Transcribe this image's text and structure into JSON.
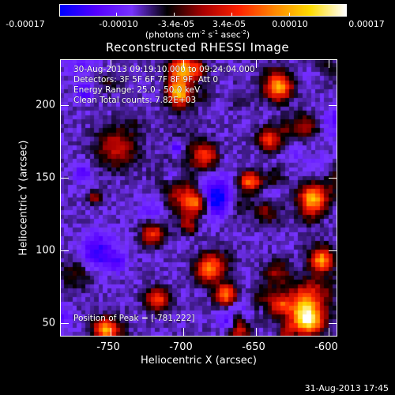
{
  "colorbar": {
    "tick_labels": [
      "-0.00017",
      "-0.00010",
      "-3.4e-05",
      "3.4e-05",
      "0.00010",
      "0.00017"
    ],
    "units_text": "(photons cm",
    "units_sup1": "-2",
    "units_mid": " s",
    "units_sup2": "-1",
    "units_end": " asec",
    "units_sup3": "-2",
    "units_close": ")",
    "colors": [
      "#0000ff",
      "#5500ff",
      "#7733ff",
      "#000000",
      "#aa0000",
      "#ff2200",
      "#ff8800",
      "#ffdd00",
      "#ffffff"
    ]
  },
  "plot": {
    "title": "Reconstructed RHESSI Image",
    "info_lines": [
      "30-Aug-2013 09:19:10.000 to 09:24:04.000",
      "Detectors: 3F 5F 6F 7F 8F 9F, Att 0",
      "Energy Range: 25.0 - 50.0 keV",
      "Clean     Total counts: 7.82E+03"
    ],
    "peak_text": "Position of Peak = [-781,222]",
    "xlabel": "Heliocentric X (arcsec)",
    "ylabel": "Heliocentric Y (arcsec)",
    "xticks": [
      "-750",
      "-700",
      "-650",
      "-600"
    ],
    "yticks": [
      "200",
      "150",
      "100",
      "50"
    ]
  },
  "chart_data": {
    "type": "heatmap",
    "title": "Reconstructed RHESSI Image",
    "xlabel": "Heliocentric X (arcsec)",
    "ylabel": "Heliocentric Y (arcsec)",
    "xlim": [
      -780,
      -590
    ],
    "ylim": [
      40,
      230
    ],
    "x_ticks": [
      -750,
      -700,
      -650,
      -600
    ],
    "y_ticks": [
      50,
      100,
      150,
      200
    ],
    "color_range": [
      -0.00017,
      0.00017
    ],
    "colorbar_ticks": [
      -0.00017,
      -0.0001,
      -3.4e-05,
      3.4e-05,
      0.0001,
      0.00017
    ],
    "peak_position": [
      -781,
      222
    ]
  },
  "timestamp": "31-Aug-2013 17:45"
}
